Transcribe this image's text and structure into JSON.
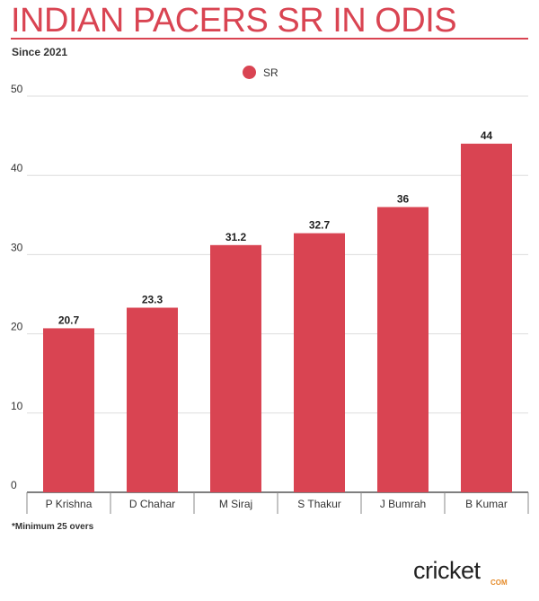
{
  "title": "INDIAN PACERS SR IN ODIS",
  "subtitle": "Since 2021",
  "footnote": "*Minimum 25 overs",
  "logo": {
    "text": "cricket",
    "suffix": "COM"
  },
  "colors": {
    "accent": "#d94452",
    "grid": "#dddddd",
    "text": "#333333"
  },
  "chart_data": {
    "type": "bar",
    "categories": [
      "P Krishna",
      "D Chahar",
      "M Siraj",
      "S Thakur",
      "J Bumrah",
      "B Kumar"
    ],
    "series": [
      {
        "name": "SR",
        "values": [
          20.7,
          23.3,
          31.2,
          32.7,
          36,
          44
        ],
        "labels": [
          "20.7",
          "23.3",
          "31.2",
          "32.7",
          "36",
          "44"
        ]
      }
    ],
    "ylim": [
      0,
      50
    ],
    "yticks": [
      0,
      10,
      20,
      30,
      40,
      50
    ],
    "grid": true,
    "legend": "top-center"
  }
}
